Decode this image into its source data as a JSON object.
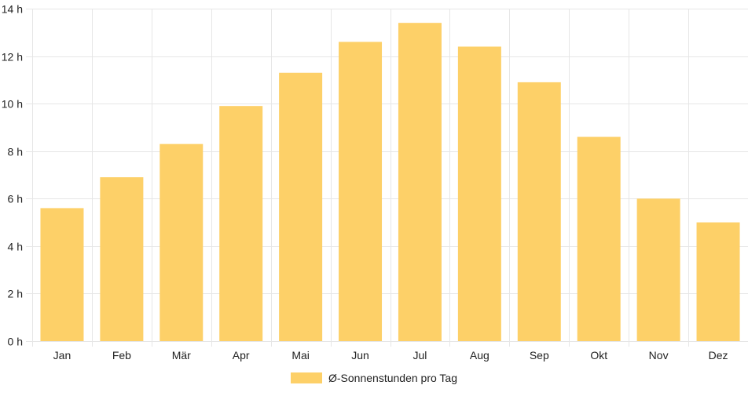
{
  "chart_data": {
    "type": "bar",
    "categories": [
      "Jan",
      "Feb",
      "Mär",
      "Apr",
      "Mai",
      "Jun",
      "Jul",
      "Aug",
      "Sep",
      "Okt",
      "Nov",
      "Dez"
    ],
    "series": [
      {
        "name": "Ø-Sonnenstunden pro Tag",
        "values": [
          5.6,
          6.9,
          8.3,
          9.9,
          11.3,
          12.6,
          13.4,
          12.4,
          10.9,
          8.6,
          6.0,
          5.0
        ],
        "color": "#FDD068"
      }
    ],
    "y_ticks": [
      "0 h",
      "2 h",
      "4 h",
      "6 h",
      "8 h",
      "10 h",
      "12 h",
      "14 h"
    ],
    "ylim": [
      0,
      14
    ],
    "y_step": 2,
    "grid": true,
    "legend_position": "bottom"
  },
  "colors": {
    "bar": "#FDD068",
    "grid": "#e6e6e6",
    "text": "#222222"
  }
}
